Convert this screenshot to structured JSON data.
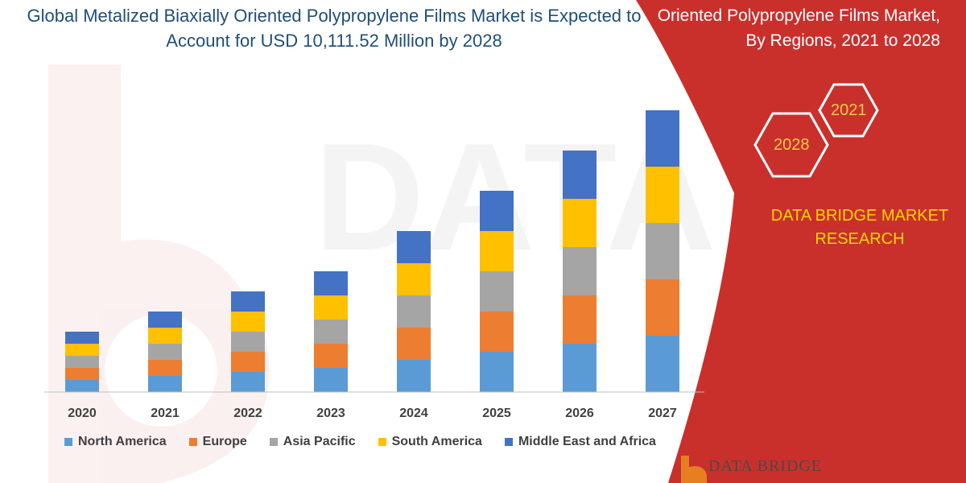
{
  "chart_data": {
    "type": "bar",
    "stacked": true,
    "title": "Global Metalized Biaxially Oriented Polypropylene Films Market is Expected to Account for USD 10,111.52 Million by 2028",
    "categories": [
      "2020",
      "2021",
      "2022",
      "2023",
      "2024",
      "2025",
      "2026",
      "2027"
    ],
    "series": [
      {
        "name": "North America",
        "color": "#5b9bd5",
        "values": [
          15,
          20,
          25,
          30,
          40,
          50,
          60,
          70
        ]
      },
      {
        "name": "Europe",
        "color": "#ed7d31",
        "values": [
          15,
          20,
          25,
          30,
          40,
          50,
          60,
          70
        ]
      },
      {
        "name": "Asia Pacific",
        "color": "#a5a5a5",
        "values": [
          15,
          20,
          25,
          30,
          40,
          50,
          60,
          70
        ]
      },
      {
        "name": "South America",
        "color": "#ffc000",
        "values": [
          15,
          20,
          25,
          30,
          40,
          50,
          60,
          70
        ]
      },
      {
        "name": "Middle East and Africa",
        "color": "#4472c4",
        "values": [
          15,
          20,
          25,
          30,
          40,
          50,
          60,
          70
        ]
      }
    ],
    "ylim": [
      0,
      360
    ],
    "xlabel": "",
    "ylabel": "",
    "legend": "bottom"
  },
  "side_panel": {
    "title": "Oriented Polypropylene Films Market, By Regions, 2021 to 2028",
    "hex_start": "2021",
    "hex_end": "2028",
    "brand": "DATA BRIDGE MARKET RESEARCH",
    "panel_color": "#c9302c"
  },
  "footer": {
    "logo_text": "DATA BRIDGE"
  }
}
